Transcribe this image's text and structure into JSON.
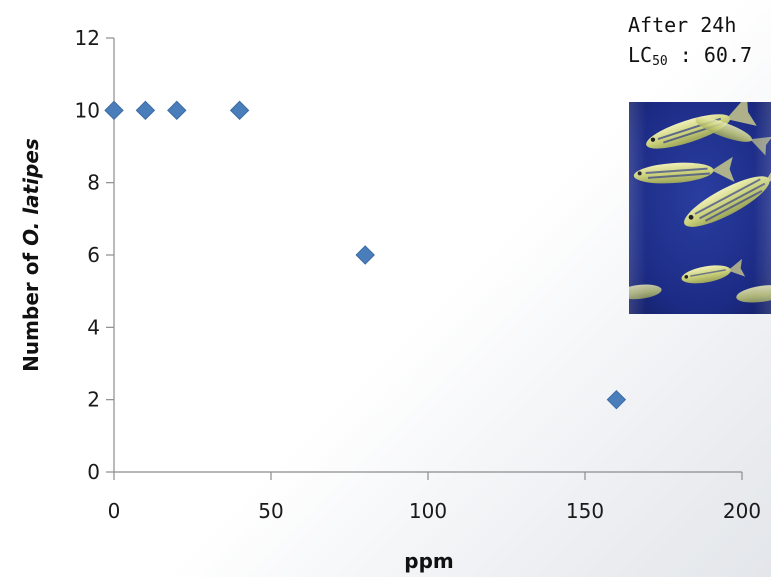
{
  "chart_data": {
    "type": "scatter",
    "title": "",
    "xlabel": "ppm",
    "ylabel": {
      "prefix": "Number of ",
      "species": "O. latipes"
    },
    "xlim": [
      0,
      200
    ],
    "ylim": [
      0,
      12
    ],
    "xticks": [
      0,
      50,
      100,
      150,
      200
    ],
    "yticks": [
      0,
      2,
      4,
      6,
      8,
      10,
      12
    ],
    "series": [
      {
        "x": [
          0,
          10,
          20,
          40,
          80,
          160
        ],
        "y": [
          10,
          10,
          10,
          10,
          6,
          2
        ],
        "color": "#4a7ebb"
      }
    ],
    "grid": false,
    "legend": "none"
  },
  "annotation": {
    "line1": "After 24h",
    "lc_prefix": "LC",
    "lc_sub": "50",
    "lc_value": " : 60.7"
  },
  "photo": {
    "icon": "zebrafish-photo",
    "background": "#1f2f8a",
    "fish_color": "#d8d98a"
  }
}
